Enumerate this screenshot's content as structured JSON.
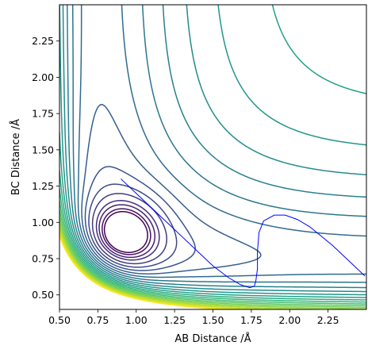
{
  "chart_data": {
    "type": "contour",
    "title": "",
    "xlabel": "AB Distance /Å",
    "ylabel": "BC Distance /Å",
    "xlim": [
      0.5,
      2.5
    ],
    "ylim": [
      0.4,
      2.5
    ],
    "x_ticks": [
      "0.50",
      "0.75",
      "1.00",
      "1.25",
      "1.50",
      "1.75",
      "2.00",
      "2.25"
    ],
    "y_ticks": [
      "0.50",
      "0.75",
      "1.00",
      "1.25",
      "1.50",
      "1.75",
      "2.00",
      "2.25"
    ],
    "grid": false,
    "legend": "none",
    "colormap": "viridis",
    "surface": {
      "well_min_x": 0.92,
      "well_min_y": 0.92,
      "saddle_x": 0.93,
      "saddle_y": 0.93,
      "asymptote_channel_y": 0.74
    },
    "contour_levels": [
      0.08,
      0.15,
      0.25,
      0.35,
      0.5,
      0.65,
      0.8,
      0.95,
      1.1,
      1.25,
      1.4,
      1.55,
      1.7,
      1.85,
      2.0,
      2.15,
      2.3,
      2.45,
      2.6,
      2.75,
      2.9,
      3.05,
      3.2,
      3.35
    ],
    "trajectory": {
      "name": "trajectory",
      "color": "#0000ff",
      "points": [
        [
          0.9,
          1.3
        ],
        [
          1.0,
          1.2
        ],
        [
          1.1,
          1.1
        ],
        [
          1.2,
          1.0
        ],
        [
          1.3,
          0.9
        ],
        [
          1.4,
          0.8
        ],
        [
          1.5,
          0.7
        ],
        [
          1.6,
          0.62
        ],
        [
          1.68,
          0.57
        ],
        [
          1.74,
          0.55
        ],
        [
          1.77,
          0.56
        ],
        [
          1.78,
          0.6
        ],
        [
          1.79,
          0.68
        ],
        [
          1.79,
          0.8
        ],
        [
          1.8,
          0.93
        ],
        [
          1.83,
          1.01
        ],
        [
          1.9,
          1.05
        ],
        [
          1.97,
          1.05
        ],
        [
          2.05,
          1.02
        ],
        [
          2.13,
          0.97
        ],
        [
          2.2,
          0.91
        ],
        [
          2.28,
          0.84
        ],
        [
          2.36,
          0.76
        ],
        [
          2.44,
          0.68
        ],
        [
          2.49,
          0.63
        ]
      ]
    }
  }
}
